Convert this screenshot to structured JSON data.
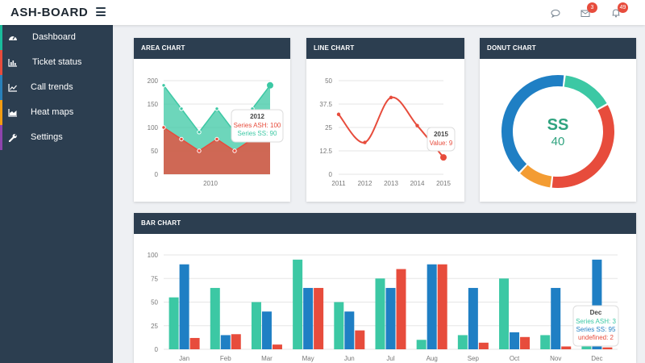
{
  "brand": "ASH-BOARD",
  "topbar": {
    "messages_badge": "3",
    "notifications_badge": "49"
  },
  "sidebar": {
    "items": [
      {
        "label": "Dashboard",
        "icon": "dashboard-gauge-icon",
        "accent": "#1abc9c"
      },
      {
        "label": "Ticket status",
        "icon": "bar-chart-icon",
        "accent": "#e74c3c"
      },
      {
        "label": "Call trends",
        "icon": "line-chart-icon",
        "accent": "#2980b9"
      },
      {
        "label": "Heat maps",
        "icon": "area-chart-icon",
        "accent": "#f39c12"
      },
      {
        "label": "Settings",
        "icon": "wrench-icon",
        "accent": "#8e44ad"
      }
    ]
  },
  "colors": {
    "teal": "#3cc8a4",
    "red": "#e74c3c",
    "blue": "#1f7fc4",
    "orange": "#f39c33",
    "header": "#2c3e50"
  },
  "panels": {
    "area": "AREA CHART",
    "line": "LINE CHART",
    "donut": "DONUT CHART",
    "bar": "BAR CHART"
  },
  "chart_data": [
    {
      "type": "area",
      "title": "AREA CHART",
      "x_tick": "2010",
      "y_ticks": [
        0,
        50,
        100,
        150,
        200
      ],
      "ylim": [
        0,
        200
      ],
      "series": [
        {
          "name": "Series SS",
          "values": [
            190,
            140,
            90,
            140,
            90,
            140,
            190
          ]
        },
        {
          "name": "Series ASH",
          "values": [
            100,
            75,
            50,
            75,
            50,
            75,
            100
          ]
        }
      ],
      "tooltip": {
        "title": "2012",
        "lines": [
          "Series ASH: 100",
          "Series SS: 90"
        ]
      }
    },
    {
      "type": "line",
      "title": "LINE CHART",
      "categories": [
        "2011",
        "2012",
        "2013",
        "2014",
        "2015"
      ],
      "y_ticks": [
        "0",
        "12.5",
        "25",
        "37.5",
        "50"
      ],
      "ylim": [
        0,
        50
      ],
      "values": [
        32,
        17,
        41,
        26,
        9
      ],
      "tooltip": {
        "title": "2015",
        "lines": [
          "Value: 9"
        ]
      }
    },
    {
      "type": "pie",
      "title": "DONUT CHART",
      "center_label": "SS",
      "center_value": "40",
      "slices": [
        {
          "label": "SS",
          "value": 40,
          "color": "#1f7fc4"
        },
        {
          "label": "teal",
          "value": 15,
          "color": "#3cc8a4"
        },
        {
          "label": "red",
          "value": 35,
          "color": "#e74c3c"
        },
        {
          "label": "orange",
          "value": 10,
          "color": "#f39c33"
        }
      ]
    },
    {
      "type": "bar",
      "title": "BAR CHART",
      "categories": [
        "Jan",
        "Feb",
        "Mar",
        "May",
        "Jun",
        "Jul",
        "Aug",
        "Sep",
        "Oct",
        "Nov",
        "Dec"
      ],
      "y_ticks": [
        0,
        25,
        50,
        75,
        100
      ],
      "ylim": [
        0,
        100
      ],
      "series": [
        {
          "name": "Series ASH",
          "color": "#3cc8a4",
          "values": [
            55,
            65,
            50,
            95,
            50,
            75,
            10,
            15,
            75,
            15,
            3
          ]
        },
        {
          "name": "Series SS",
          "color": "#1f7fc4",
          "values": [
            90,
            15,
            40,
            65,
            40,
            65,
            90,
            65,
            18,
            65,
            95
          ]
        },
        {
          "name": "undefined",
          "color": "#e74c3c",
          "values": [
            12,
            16,
            5,
            65,
            20,
            85,
            90,
            7,
            13,
            3,
            2
          ]
        }
      ],
      "tooltip": {
        "title": "Dec",
        "lines": [
          "Series ASH: 3",
          "Series SS: 95",
          "undefined: 2"
        ]
      }
    }
  ]
}
